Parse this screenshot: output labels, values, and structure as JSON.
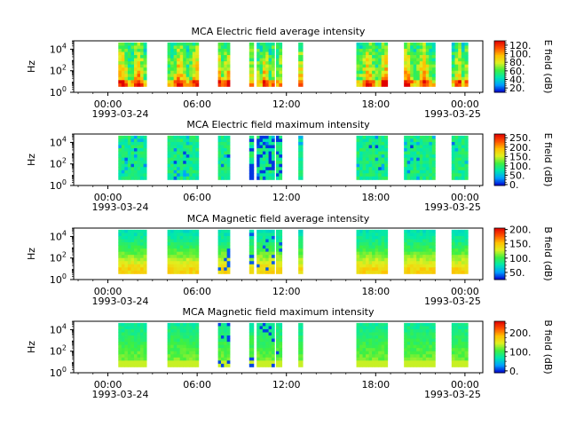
{
  "panels": [
    {
      "id": "e_avg",
      "title": "MCA  Electric field average intensity",
      "ylabel": "Hz",
      "cbar_label": "E field (dB)",
      "cbar_ticks": [
        "120.",
        "100.",
        "80.",
        "60.",
        "40.",
        "20."
      ],
      "cbar_tick_values": [
        120,
        100,
        80,
        60,
        40,
        20
      ],
      "cbar_range": [
        10,
        130
      ],
      "start_date": "1993-03-24",
      "end_date": "1993-03-25"
    },
    {
      "id": "e_max",
      "title": "MCA  Electric field maximum intensity",
      "ylabel": "Hz",
      "cbar_label": "E field (dB)",
      "cbar_ticks": [
        "250.",
        "200.",
        "150.",
        "100.",
        "50.",
        "0."
      ],
      "cbar_tick_values": [
        250,
        200,
        150,
        100,
        50,
        0
      ],
      "cbar_range": [
        -5,
        270
      ],
      "start_date": "1993-03-24",
      "end_date": "1993-03-25"
    },
    {
      "id": "b_avg",
      "title": "MCA  Magnetic field average intensity",
      "ylabel": "Hz",
      "cbar_label": "B field (dB)",
      "cbar_ticks": [
        "200.",
        "150.",
        "100.",
        "50."
      ],
      "cbar_tick_values": [
        200,
        150,
        100,
        50
      ],
      "cbar_range": [
        25,
        205
      ],
      "start_date": "1993-03-24",
      "end_date": "1993-03-25"
    },
    {
      "id": "b_max",
      "title": "MCA  Magnetic field maximum intensity",
      "ylabel": "Hz",
      "cbar_label": "B field (dB)",
      "cbar_ticks": [
        "200.",
        "100.",
        "0."
      ],
      "cbar_tick_values": [
        200,
        100,
        0
      ],
      "cbar_range": [
        -10,
        260
      ],
      "start_date": "1993-03-24",
      "end_date": "1993-03-25"
    }
  ],
  "chart_data": {
    "type": "heatmap",
    "x_axis": {
      "tick_labels": [
        "00:00",
        "06:00",
        "12:00",
        "18:00",
        "00:00"
      ],
      "tick_hours": [
        0,
        6,
        12,
        18,
        24
      ],
      "range_hours": [
        -2.3,
        25.2
      ]
    },
    "y_axis": {
      "scale": "log",
      "tick_labels": [
        "10",
        "10",
        "10"
      ],
      "tick_exponents": [
        "0",
        "2",
        "4"
      ],
      "tick_values": [
        1,
        100,
        10000
      ],
      "range": [
        1,
        60000
      ]
    },
    "data_intervals_hours": [
      [
        0.7,
        2.6
      ],
      [
        4.0,
        6.1
      ],
      [
        7.4,
        8.2
      ],
      [
        9.5,
        9.8
      ],
      [
        10.0,
        11.2
      ],
      [
        11.3,
        11.7
      ],
      [
        12.8,
        13.1
      ],
      [
        16.7,
        18.8
      ],
      [
        19.9,
        22.0
      ],
      [
        23.1,
        24.2
      ]
    ],
    "colormap": [
      "#0000d0",
      "#00a0ff",
      "#00e8b0",
      "#40f040",
      "#e0f020",
      "#ffc000",
      "#ff5000",
      "#e00000"
    ]
  }
}
